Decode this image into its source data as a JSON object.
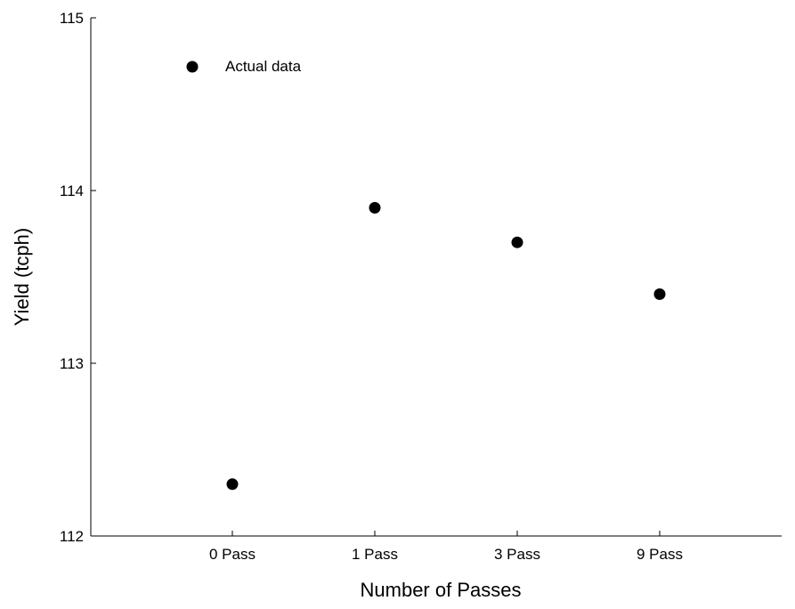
{
  "chart_data": {
    "type": "scatter",
    "title": "",
    "xlabel": "Number of Passes",
    "ylabel": "Yield (tcph)",
    "categories": [
      "0 Pass",
      "1 Pass",
      "3 Pass",
      "9 Pass"
    ],
    "ylim": [
      112,
      115
    ],
    "yticks": [
      "112",
      "113",
      "114",
      "115"
    ],
    "grid": false,
    "legend": {
      "position": "top-left",
      "entries": [
        "Actual data"
      ]
    },
    "series": [
      {
        "name": "Actual data",
        "color": "#000000",
        "points": [
          {
            "x": "0 Pass",
            "y": 112.3
          },
          {
            "x": "1 Pass",
            "y": 113.9
          },
          {
            "x": "3 Pass",
            "y": 113.7
          },
          {
            "x": "9 Pass",
            "y": 113.4
          }
        ]
      }
    ]
  }
}
